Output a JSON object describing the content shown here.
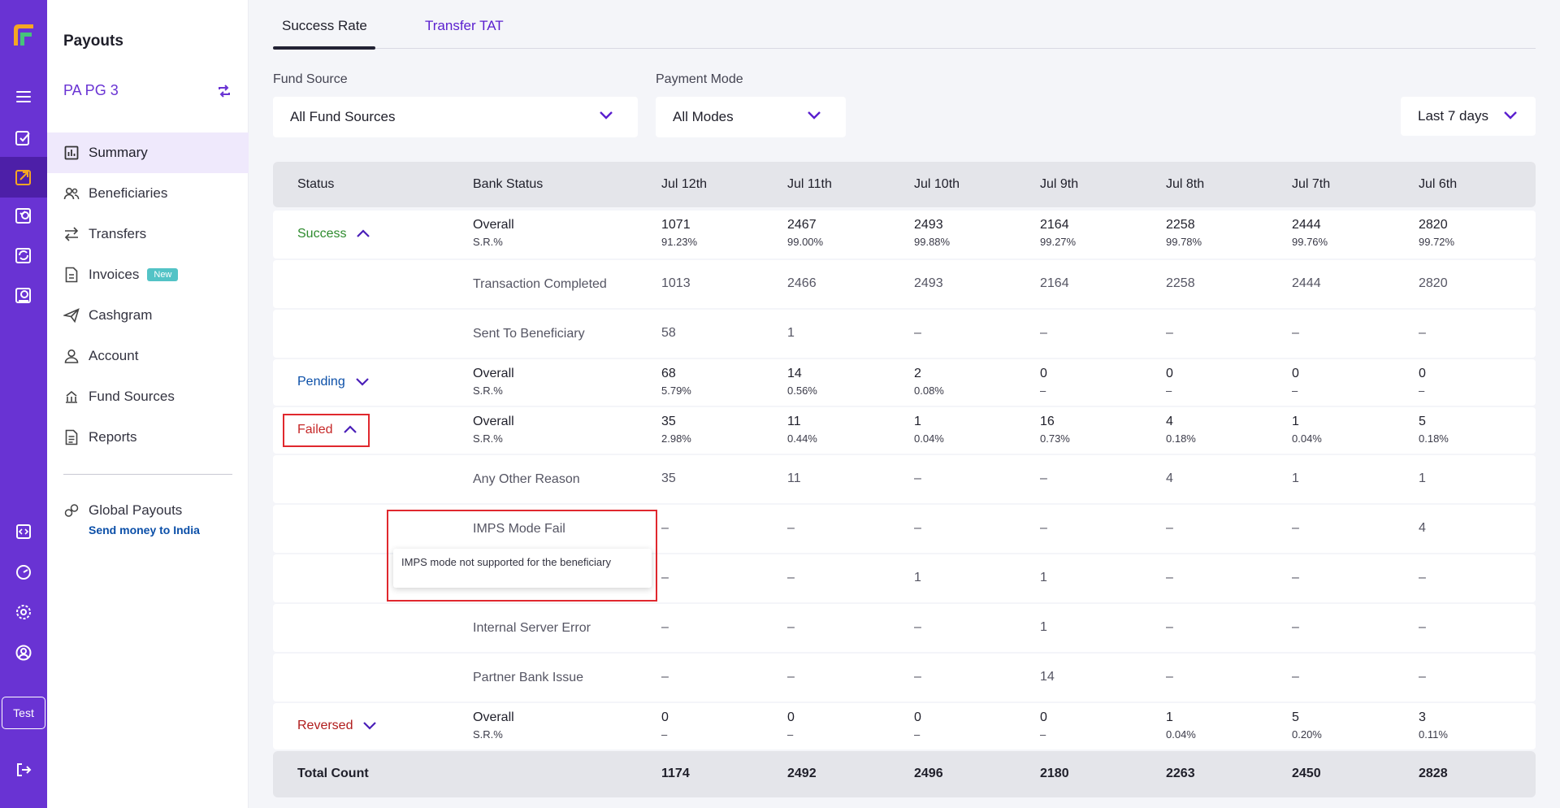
{
  "rail": {
    "icons": [
      "menu-icon",
      "payment-gateway-icon",
      "payouts-icon",
      "verification-icon",
      "subscriptions-icon",
      "payment-links-icon",
      "developers-icon",
      "reports-icon",
      "settings-icon",
      "profile-icon",
      "logout-icon"
    ],
    "test_label": "Test",
    "colors": {
      "bg": "#6933d3",
      "active": "#4d1fa8"
    }
  },
  "sidebar": {
    "title": "Payouts",
    "account": "PA PG 3",
    "items": [
      {
        "label": "Summary",
        "icon": "chart-icon",
        "active": true
      },
      {
        "label": "Beneficiaries",
        "icon": "users-icon"
      },
      {
        "label": "Transfers",
        "icon": "transfer-icon"
      },
      {
        "label": "Invoices",
        "icon": "invoice-icon",
        "badge": "New"
      },
      {
        "label": "Cashgram",
        "icon": "send-icon"
      },
      {
        "label": "Account",
        "icon": "user-icon"
      },
      {
        "label": "Fund Sources",
        "icon": "fund-icon"
      },
      {
        "label": "Reports",
        "icon": "report-icon"
      }
    ],
    "global": {
      "label": "Global Payouts",
      "sub": "Send money to India"
    }
  },
  "tabs": [
    {
      "label": "Success Rate",
      "active": true
    },
    {
      "label": "Transfer TAT",
      "active": false
    }
  ],
  "filters": {
    "fund_source_label": "Fund Source",
    "fund_source_value": "All Fund Sources",
    "payment_mode_label": "Payment Mode",
    "payment_mode_value": "All Modes",
    "date_range_value": "Last 7 days"
  },
  "table": {
    "headers": [
      "Status",
      "Bank Status",
      "Jul 12th",
      "Jul 11th",
      "Jul 10th",
      "Jul 9th",
      "Jul 8th",
      "Jul 7th",
      "Jul 6th"
    ],
    "rows": [
      {
        "status": "Success",
        "status_color": "#2e8b2e",
        "caret": "up",
        "bank": "Overall",
        "sr_label": "S.R.%",
        "values": [
          "1071",
          "2467",
          "2493",
          "2164",
          "2258",
          "2444",
          "2820"
        ],
        "rates": [
          "91.23%",
          "99.00%",
          "99.88%",
          "99.27%",
          "99.78%",
          "99.76%",
          "99.72%"
        ]
      },
      {
        "bank": "Transaction Completed",
        "values": [
          "1013",
          "2466",
          "2493",
          "2164",
          "2258",
          "2444",
          "2820"
        ]
      },
      {
        "bank": "Sent To Beneficiary",
        "values": [
          "58",
          "1",
          "–",
          "–",
          "–",
          "–",
          "–"
        ]
      },
      {
        "status": "Pending",
        "status_color": "#0b4fa8",
        "caret": "down",
        "bank": "Overall",
        "sr_label": "S.R.%",
        "values": [
          "68",
          "14",
          "2",
          "0",
          "0",
          "0",
          "0"
        ],
        "rates": [
          "5.79%",
          "0.56%",
          "0.08%",
          "–",
          "–",
          "–",
          "–"
        ]
      },
      {
        "status": "Failed",
        "status_color": "#c62828",
        "caret": "up",
        "bank": "Overall",
        "sr_label": "S.R.%",
        "values": [
          "35",
          "11",
          "1",
          "16",
          "4",
          "1",
          "5"
        ],
        "rates": [
          "2.98%",
          "0.44%",
          "0.04%",
          "0.73%",
          "0.18%",
          "0.04%",
          "0.18%"
        ]
      },
      {
        "bank": "Any Other Reason",
        "values": [
          "35",
          "11",
          "–",
          "–",
          "4",
          "1",
          "1"
        ]
      },
      {
        "bank": "IMPS Mode Fail",
        "values": [
          "–",
          "–",
          "–",
          "–",
          "–",
          "–",
          "4"
        ]
      },
      {
        "bank": "",
        "values": [
          "–",
          "–",
          "1",
          "1",
          "–",
          "–",
          "–"
        ]
      },
      {
        "bank": "Internal Server Error",
        "values": [
          "–",
          "–",
          "–",
          "1",
          "–",
          "–",
          "–"
        ]
      },
      {
        "bank": "Partner Bank Issue",
        "values": [
          "–",
          "–",
          "–",
          "14",
          "–",
          "–",
          "–"
        ]
      },
      {
        "status": "Reversed",
        "status_color": "#b01c1c",
        "caret": "down",
        "bank": "Overall",
        "sr_label": "S.R.%",
        "values": [
          "0",
          "0",
          "0",
          "0",
          "1",
          "5",
          "3"
        ],
        "rates": [
          "–",
          "–",
          "–",
          "–",
          "0.04%",
          "0.20%",
          "0.11%"
        ]
      }
    ],
    "total": {
      "label": "Total Count",
      "values": [
        "1174",
        "2492",
        "2496",
        "2180",
        "2263",
        "2450",
        "2828"
      ]
    }
  },
  "tooltip": "IMPS mode not supported for the beneficiary"
}
